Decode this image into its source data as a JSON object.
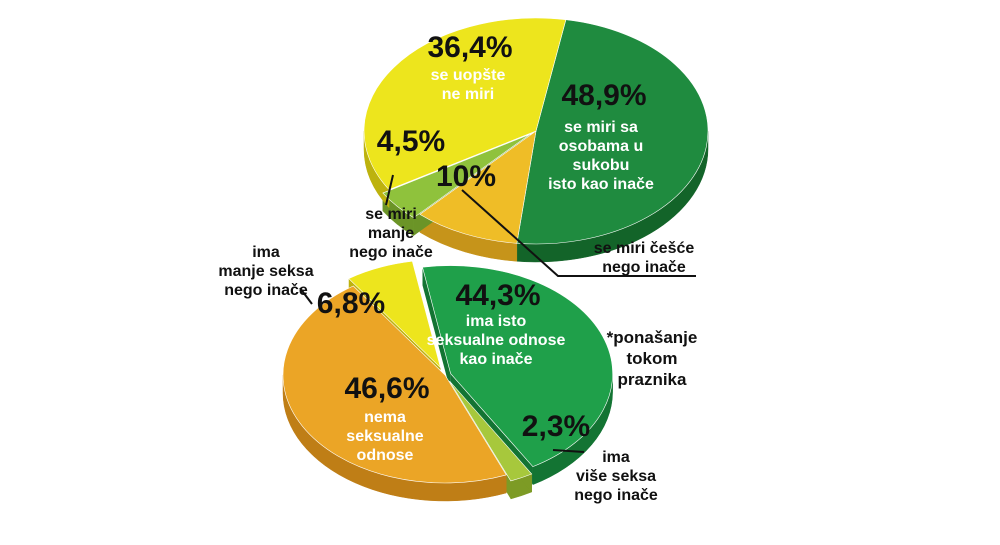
{
  "chart_data": [
    {
      "type": "pie",
      "slices": [
        {
          "value": 48.9,
          "label": "48,9%",
          "description": [
            "se miri sa",
            "osobama u",
            "sukobu",
            "isto kao inače"
          ],
          "color": "#1f8b3f",
          "side_color": "#136429"
        },
        {
          "value": 10,
          "label": "10%",
          "description": [
            "se miri češće",
            "nego inače"
          ],
          "color": "#efbd27",
          "side_color": "#c6941a"
        },
        {
          "value": 4.5,
          "label": "4,5%",
          "description": [
            "se miri",
            "manje",
            "nego inače"
          ],
          "color": "#8fc23c",
          "side_color": "#6b9427"
        },
        {
          "value": 36.4,
          "label": "36,4%",
          "description": [
            "se uopšte",
            "ne miri"
          ],
          "color": "#ede51d",
          "side_color": "#bdb20e"
        }
      ]
    },
    {
      "type": "pie",
      "slices": [
        {
          "value": 44.3,
          "label": "44,3%",
          "description": [
            "ima isto",
            "seksualne odnose",
            "kao inače"
          ],
          "color": "#1fa04a",
          "side_color": "#137433"
        },
        {
          "value": 2.3,
          "label": "2,3%",
          "description": [
            "ima",
            "više seksa",
            "nego inače"
          ],
          "color": "#a7c83c",
          "side_color": "#7d9b25"
        },
        {
          "value": 46.6,
          "label": "46,6%",
          "description": [
            "nema",
            "seksualne",
            "odnose"
          ],
          "color": "#eba526",
          "side_color": "#bf7e16"
        },
        {
          "value": 6.8,
          "label": "6,8%",
          "description": [
            "ima",
            "manje seksa",
            "nego inače"
          ],
          "color": "#ede51d",
          "side_color": "#bdb20e"
        }
      ]
    }
  ],
  "note": [
    "*ponašanje",
    "tokom",
    "praznika"
  ]
}
